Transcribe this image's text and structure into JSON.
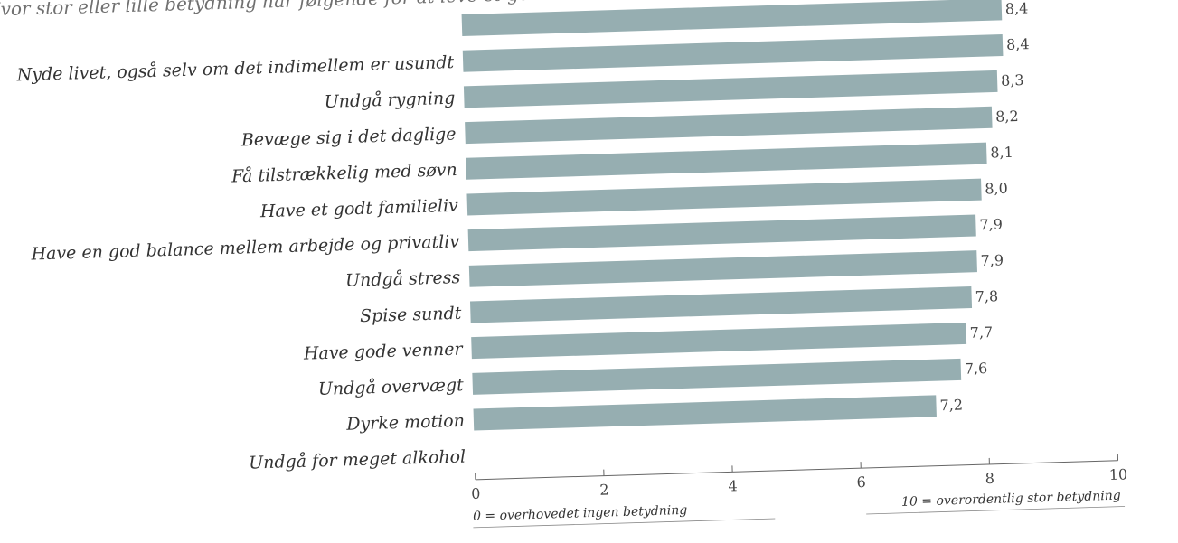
{
  "chart_data": {
    "type": "bar",
    "orientation": "horizontal",
    "title": "Hvor stor eller lille betydning har følgende for at leve et godt liv?",
    "categories": [
      "",
      "Nyde livet, også selv om det indimellem er usundt",
      "Undgå rygning",
      "Bevæge sig i det daglige",
      "Få tilstrækkelig med søvn",
      "Have et godt familieliv",
      "Have en god balance mellem arbejde og privatliv",
      "Undgå stress",
      "Spise sundt",
      "Have gode venner",
      "Undgå overvægt",
      "Dyrke motion",
      "Undgå for meget alkohol"
    ],
    "values": [
      8.4,
      8.4,
      8.3,
      8.2,
      8.1,
      8.0,
      7.9,
      7.9,
      7.8,
      7.7,
      7.6,
      7.2,
      0
    ],
    "value_labels": [
      "8,4",
      "8,4",
      "8,3",
      "8,2",
      "8,1",
      "8,0",
      "7,9",
      "7,9",
      "7,8",
      "7,7",
      "7,6",
      "7,2",
      ""
    ],
    "xlim": [
      0,
      10
    ],
    "ticks": [
      0,
      2,
      4,
      6,
      8,
      10
    ],
    "tick_labels": [
      "0",
      "2",
      "4",
      "6",
      "8",
      "10"
    ],
    "axis_min_note": "0 = overhovedet ingen betydning",
    "axis_max_note": "10 = overordentlig stor betydning",
    "bar_color": "#96aeb1",
    "grid": false,
    "legend": "none"
  }
}
